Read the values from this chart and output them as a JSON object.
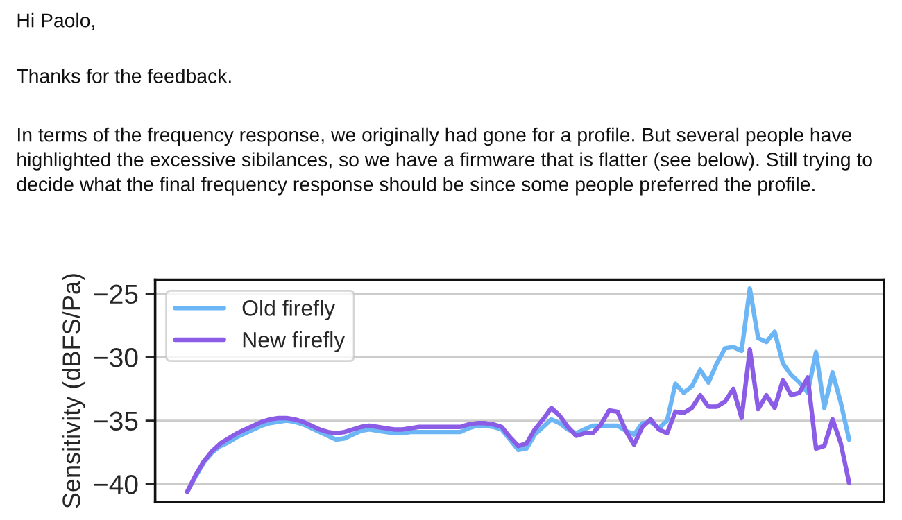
{
  "chart_data": {
    "type": "line",
    "annotations": [
      "Hi Paolo,",
      "Thanks for the feedback.",
      "In terms of the frequency response, we originally had gone for a profile. But several people have highlighted the excessive sibilances, so we have a firmware that is flatter (see below). Still trying to decide what the final frequency response should be since some people preferred the profile."
    ],
    "ylabel": "Sensitivity (dBFS/Pa)",
    "categories": [
      null,
      null,
      null,
      null,
      null,
      null,
      null,
      null,
      null,
      null,
      null,
      null,
      null,
      null,
      null,
      null,
      null,
      null,
      null,
      null,
      null,
      null,
      null,
      null,
      null,
      null,
      null,
      null,
      null,
      null,
      null,
      null,
      null,
      null,
      null,
      null,
      null,
      null,
      null,
      null,
      null,
      null,
      null,
      null,
      null,
      null,
      null,
      null,
      null,
      null,
      null,
      null,
      null,
      null,
      null,
      null,
      null,
      null,
      null,
      null,
      null,
      null,
      null,
      null,
      null,
      null,
      null,
      null,
      null,
      null,
      null,
      null,
      null,
      null,
      null,
      null,
      null,
      null,
      null,
      null,
      null
    ],
    "ylim": [
      -41.4,
      -23.9
    ],
    "yticks": [
      {
        "value": -25,
        "label": "−25"
      },
      {
        "value": -30,
        "label": "−30"
      },
      {
        "value": -35,
        "label": "−35"
      },
      {
        "value": -40,
        "label": "−40"
      }
    ],
    "grid": "y",
    "legend": "top left",
    "tick_labels": "y",
    "series": [
      {
        "name": "Old firefly",
        "color": "#6cb6f5",
        "values": [
          -40.6,
          -39.4,
          -38.3,
          -37.5,
          -37.0,
          -36.7,
          -36.3,
          -36.0,
          -35.7,
          -35.4,
          -35.2,
          -35.1,
          -35.0,
          -35.1,
          -35.3,
          -35.6,
          -35.9,
          -36.2,
          -36.5,
          -36.4,
          -36.1,
          -35.8,
          -35.7,
          -35.8,
          -35.9,
          -36.0,
          -36.0,
          -35.9,
          -35.9,
          -35.9,
          -35.9,
          -35.9,
          -35.9,
          -35.9,
          -35.6,
          -35.4,
          -35.4,
          -35.5,
          -35.7,
          -36.5,
          -37.3,
          -37.2,
          -36.1,
          -35.5,
          -34.9,
          -35.2,
          -35.7,
          -36.0,
          -35.7,
          -35.4,
          -35.4,
          -35.4,
          -35.4,
          -35.8,
          -36.1,
          -35.2,
          -35.1,
          -35.6,
          -35.0,
          -32.1,
          -32.8,
          -32.3,
          -31.0,
          -32.0,
          -30.5,
          -29.3,
          -29.2,
          -29.5,
          -24.6,
          -28.5,
          -28.8,
          -28.0,
          -30.5,
          -31.4,
          -32.0,
          -32.8,
          -29.6,
          -34.0,
          -31.2,
          -33.6,
          -36.5
        ]
      },
      {
        "name": "New firefly",
        "color": "#8b5ce6",
        "values": [
          -40.6,
          -39.3,
          -38.2,
          -37.4,
          -36.8,
          -36.4,
          -36.0,
          -35.7,
          -35.4,
          -35.1,
          -34.9,
          -34.8,
          -34.8,
          -34.9,
          -35.1,
          -35.4,
          -35.7,
          -35.9,
          -36.0,
          -35.9,
          -35.7,
          -35.5,
          -35.4,
          -35.5,
          -35.6,
          -35.7,
          -35.7,
          -35.6,
          -35.5,
          -35.5,
          -35.5,
          -35.5,
          -35.5,
          -35.5,
          -35.3,
          -35.2,
          -35.2,
          -35.3,
          -35.5,
          -36.3,
          -37.0,
          -36.8,
          -35.7,
          -34.9,
          -34.0,
          -34.6,
          -35.5,
          -36.2,
          -36.0,
          -36.0,
          -35.3,
          -34.2,
          -34.3,
          -35.8,
          -36.9,
          -35.5,
          -34.9,
          -35.7,
          -36.0,
          -34.3,
          -34.4,
          -34.0,
          -33.0,
          -33.9,
          -33.9,
          -33.5,
          -32.5,
          -34.8,
          -29.4,
          -34.1,
          -33.0,
          -34.0,
          -31.8,
          -33.0,
          -32.8,
          -31.6,
          -37.2,
          -37.0,
          -34.9,
          -36.8,
          -39.9
        ]
      }
    ]
  }
}
